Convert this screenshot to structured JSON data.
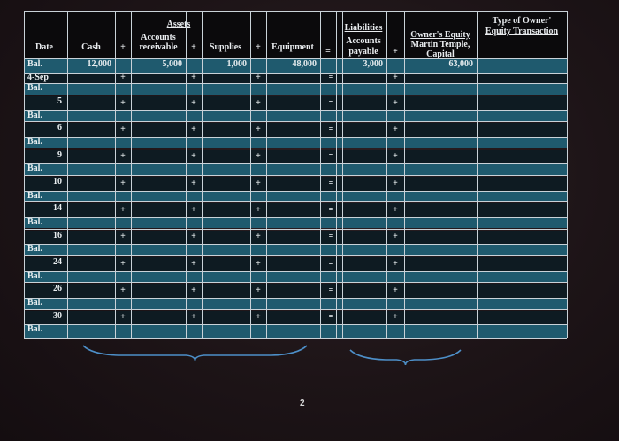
{
  "headers": {
    "assets": "Assets",
    "date": "Date",
    "cash": "Cash",
    "plus": "+",
    "accounts_receivable": "Accounts receivable",
    "supplies": "Supplies",
    "equipment": "Equipment",
    "equals": "=",
    "liabilities": "Liabilities",
    "accounts_payable": "Accounts payable",
    "owners_equity": "Owner's Equity",
    "capital": "Martin Temple, Capital",
    "type_of_owner": "Type of Owner'",
    "equity_transaction": "Equity Transaction"
  },
  "balance_row": {
    "label": "Bal.",
    "cash": "12,000",
    "accounts_receivable": "5,000",
    "supplies": "1,000",
    "equipment": "48,000",
    "accounts_payable": "3,000",
    "capital": "63,000"
  },
  "transaction_dates": [
    "4-Sep",
    "5",
    "6",
    "9",
    "10",
    "14",
    "16",
    "24",
    "26",
    "30"
  ],
  "bal_label": "Bal.",
  "page_number": "2"
}
